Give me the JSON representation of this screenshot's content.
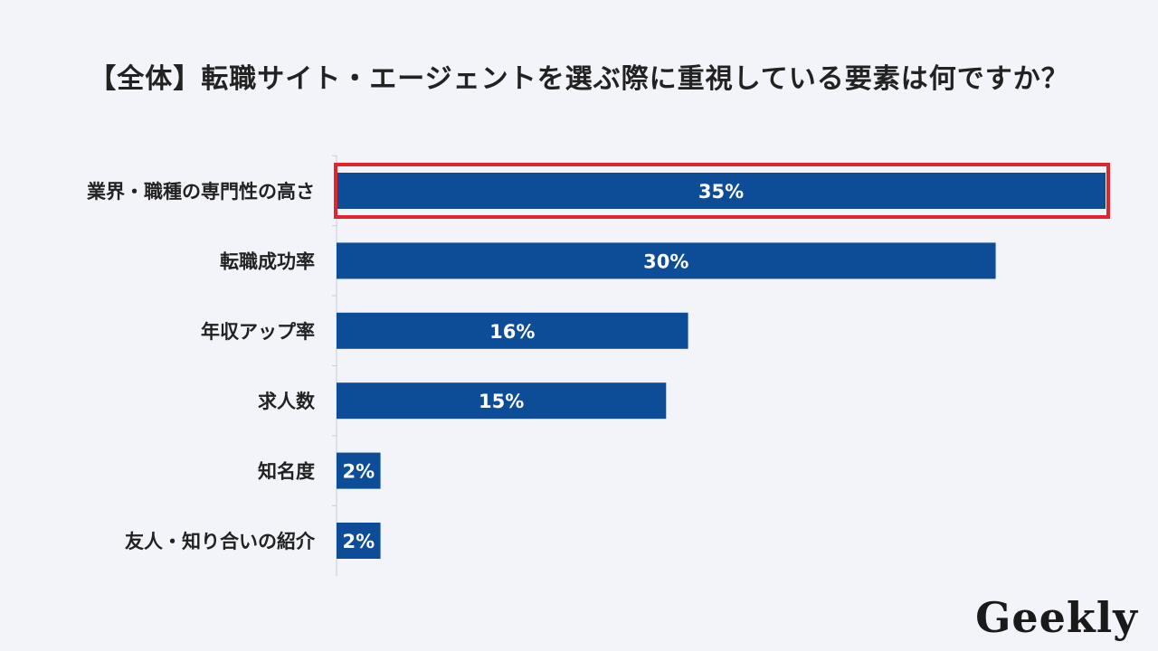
{
  "logo": {
    "text": "Geekly"
  },
  "colors": {
    "bar": "#0d4c97",
    "highlight": "#e0252f",
    "label": "#222222",
    "value_label": "#ffffff",
    "axis": "#c9ccd3"
  },
  "chart_data": {
    "type": "bar",
    "orientation": "horizontal",
    "title": "【全体】転職サイト・エージェントを選ぶ際に重視している要素は何ですか？",
    "xlabel": "",
    "ylabel": "",
    "unit": "%",
    "xlim": [
      0,
      35
    ],
    "grid": false,
    "categories": [
      "業界・職種の専門性の高さ",
      "転職成功率",
      "年収アップ率",
      "求人数",
      "知名度",
      "友人・知り合いの紹介"
    ],
    "values": [
      35,
      30,
      16,
      15,
      2,
      2
    ],
    "value_labels": [
      "35%",
      "30%",
      "16%",
      "15%",
      "2%",
      "2%"
    ],
    "highlighted_category": "業界・職種の専門性の高さ"
  }
}
